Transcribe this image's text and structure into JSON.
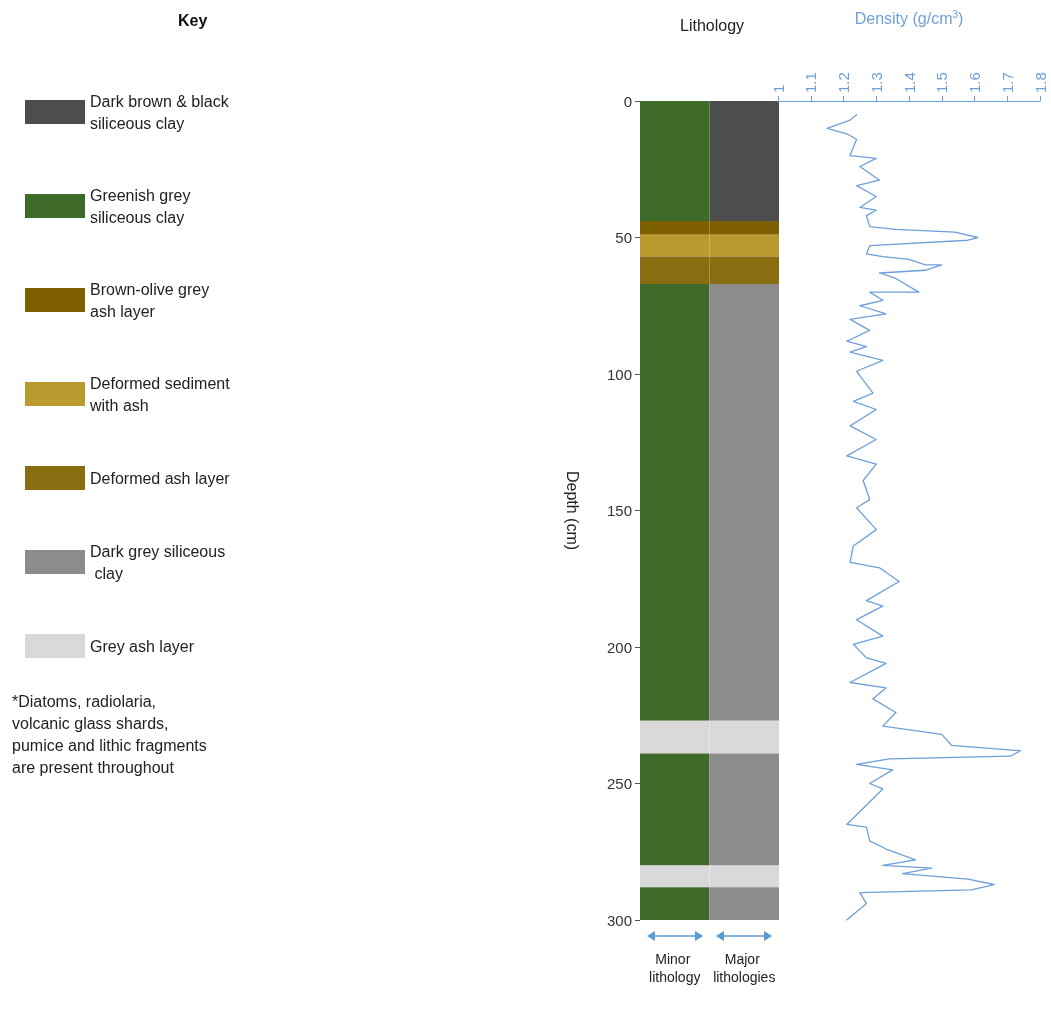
{
  "chart_data": [
    {
      "type": "bar",
      "title": "Lithology",
      "legend_title": "Key",
      "ylabel": "Depth (cm)",
      "stacked": true,
      "legend": "left",
      "grid": false,
      "categories": [
        "Minor lithology",
        "Major lithologies"
      ],
      "ylim": [
        300,
        0
      ],
      "yticks": [
        0,
        50,
        100,
        150,
        200,
        250,
        300
      ],
      "annotations": [
        "*Diatoms, radiolaria, volcanic glass shards, pumice and lithic fragments are present throughout"
      ],
      "series": [
        {
          "name": "Dark brown & black siliceous clay",
          "color": "#4d4d4d",
          "values": [
            null,
            44
          ]
        },
        {
          "name": "Greenish grey siliceous clay",
          "color": "#3f6b2a",
          "values": [
            44,
            null
          ]
        },
        {
          "name": "Brown-olive grey ash layer",
          "color": "#7f6000",
          "values": [
            5,
            5
          ]
        },
        {
          "name": "Deformed sediment with ash",
          "color": "#b89a2e",
          "values": [
            8,
            8
          ]
        },
        {
          "name": "Deformed ash layer",
          "color": "#8a6d10",
          "values": [
            10,
            10
          ]
        },
        {
          "color": "#3f6b2a",
          "values": [
            160,
            null
          ]
        },
        {
          "name": "Dark grey siliceous clay",
          "color": "#8c8c8c",
          "values": [
            null,
            160
          ]
        },
        {
          "name": "Grey ash layer",
          "color": "#d9d9d9",
          "values": [
            12,
            12
          ]
        },
        {
          "color": "#3f6b2a",
          "values": [
            41,
            null
          ]
        },
        {
          "color": "#8c8c8c",
          "values": [
            null,
            41
          ]
        },
        {
          "color": "#d9d9d9",
          "values": [
            8,
            8
          ]
        },
        {
          "color": "#3f6b2a",
          "values": [
            12,
            null
          ]
        },
        {
          "color": "#8c8c8c",
          "values": [
            null,
            12
          ]
        }
      ]
    },
    {
      "type": "line",
      "xlabel": "Density (g/cm$^{3}$)",
      "grid": false,
      "marker": "none",
      "line_style": "solid",
      "tick_labels": "x",
      "xlim": [
        1,
        1.8
      ],
      "xticks": [
        1,
        1.1,
        1.2,
        1.3,
        1.4,
        1.5,
        1.6,
        1.7,
        1.8
      ],
      "ylim": [
        300,
        0
      ],
      "yticks": [
        0,
        50,
        100,
        150,
        200,
        250,
        300
      ],
      "series": [
        {
          "color": "#6f9fd8",
          "x": [
            1.24,
            1.22,
            1.15,
            1.21,
            1.24,
            1.22,
            1.3,
            1.25,
            1.31,
            1.24,
            1.3,
            1.25,
            1.3,
            1.27,
            1.28,
            1.36,
            1.54,
            1.61,
            1.58,
            1.28,
            1.27,
            1.32,
            1.4,
            1.45,
            1.5,
            1.45,
            1.31,
            1.36,
            1.43,
            1.28,
            1.32,
            1.25,
            1.33,
            1.22,
            1.28,
            1.21,
            1.27,
            1.22,
            1.32,
            1.24,
            1.29,
            1.23,
            1.3,
            1.22,
            1.3,
            1.21,
            1.3,
            1.26,
            1.28,
            1.24,
            1.3,
            1.23,
            1.22,
            1.31,
            1.37,
            1.27,
            1.32,
            1.24,
            1.32,
            1.23,
            1.27,
            1.33,
            1.22,
            1.33,
            1.29,
            1.36,
            1.32,
            1.5,
            1.53,
            1.74,
            1.71,
            1.34,
            1.24,
            1.35,
            1.28,
            1.32,
            1.21,
            1.27,
            1.28,
            1.33,
            1.42,
            1.32,
            1.47,
            1.38,
            1.58,
            1.66,
            1.59,
            1.25,
            1.27,
            1.21
          ],
          "values": [
            5,
            7,
            10,
            12,
            14,
            20,
            21,
            24,
            29,
            31,
            35,
            39,
            40,
            42,
            46,
            47,
            48,
            50,
            51,
            53,
            56,
            57,
            58,
            60,
            60,
            62,
            63,
            65,
            70,
            70,
            73,
            75,
            78,
            80,
            84,
            88,
            90,
            92,
            95,
            99,
            107,
            110,
            113,
            119,
            124,
            130,
            133,
            139,
            146,
            149,
            157,
            163,
            169,
            171,
            176,
            183,
            185,
            190,
            196,
            199,
            204,
            206,
            213,
            215,
            219,
            224,
            229,
            232,
            236,
            238,
            240,
            241,
            243,
            245,
            250,
            252,
            265,
            266,
            271,
            274,
            278,
            280,
            281,
            283,
            285,
            287,
            289,
            290,
            294,
            300
          ]
        }
      ]
    }
  ]
}
